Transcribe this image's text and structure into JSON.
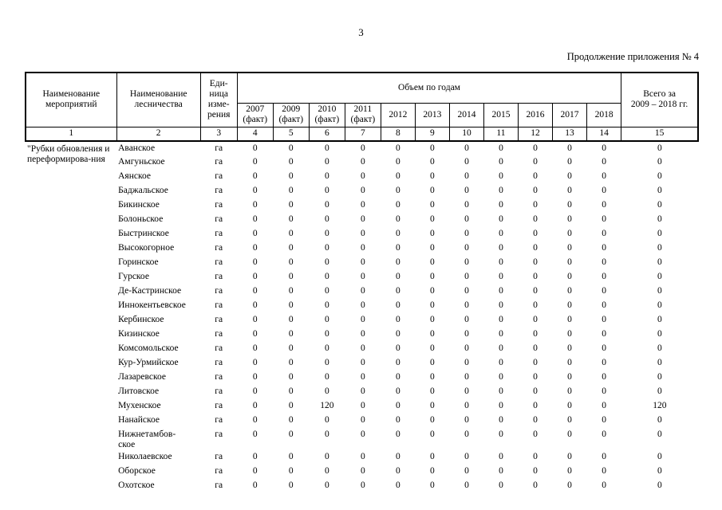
{
  "page": {
    "page_number": "3",
    "continuation_note": "Продолжение приложения № 4"
  },
  "table": {
    "header": {
      "activity_col": "Наименование мероприятий",
      "forestry_col": "Наименование лесничества",
      "unit_col": "Еди-ница изме-рения",
      "volume_group": "Объем по годам",
      "total_col_line1": "Всего за",
      "total_col_line2": "2009 – 2018 гг.",
      "year_cols": [
        {
          "year": "2007",
          "note": "(факт)"
        },
        {
          "year": "2009",
          "note": "(факт)"
        },
        {
          "year": "2010",
          "note": "(факт)"
        },
        {
          "year": "2011",
          "note": "(факт)"
        },
        {
          "year": "2012",
          "note": ""
        },
        {
          "year": "2013",
          "note": ""
        },
        {
          "year": "2014",
          "note": ""
        },
        {
          "year": "2015",
          "note": ""
        },
        {
          "year": "2016",
          "note": ""
        },
        {
          "year": "2017",
          "note": ""
        },
        {
          "year": "2018",
          "note": ""
        }
      ],
      "column_numbers": [
        "1",
        "2",
        "3",
        "4",
        "5",
        "6",
        "7",
        "8",
        "9",
        "10",
        "11",
        "12",
        "13",
        "14",
        "15"
      ]
    },
    "activity_label": "\"Рубки обновления и переформирова-ния",
    "rows": [
      {
        "forestry": "Аванское",
        "unit": "га",
        "values": [
          "0",
          "0",
          "0",
          "0",
          "0",
          "0",
          "0",
          "0",
          "0",
          "0",
          "0"
        ],
        "total": "0"
      },
      {
        "forestry": "Амгуньское",
        "unit": "га",
        "values": [
          "0",
          "0",
          "0",
          "0",
          "0",
          "0",
          "0",
          "0",
          "0",
          "0",
          "0"
        ],
        "total": "0"
      },
      {
        "forestry": "Аянское",
        "unit": "га",
        "values": [
          "0",
          "0",
          "0",
          "0",
          "0",
          "0",
          "0",
          "0",
          "0",
          "0",
          "0"
        ],
        "total": "0"
      },
      {
        "forestry": "Баджальское",
        "unit": "га",
        "values": [
          "0",
          "0",
          "0",
          "0",
          "0",
          "0",
          "0",
          "0",
          "0",
          "0",
          "0"
        ],
        "total": "0"
      },
      {
        "forestry": "Бикинское",
        "unit": "га",
        "values": [
          "0",
          "0",
          "0",
          "0",
          "0",
          "0",
          "0",
          "0",
          "0",
          "0",
          "0"
        ],
        "total": "0"
      },
      {
        "forestry": "Болоньское",
        "unit": "га",
        "values": [
          "0",
          "0",
          "0",
          "0",
          "0",
          "0",
          "0",
          "0",
          "0",
          "0",
          "0"
        ],
        "total": "0"
      },
      {
        "forestry": "Быстринское",
        "unit": "га",
        "values": [
          "0",
          "0",
          "0",
          "0",
          "0",
          "0",
          "0",
          "0",
          "0",
          "0",
          "0"
        ],
        "total": "0"
      },
      {
        "forestry": "Высокогорное",
        "unit": "га",
        "values": [
          "0",
          "0",
          "0",
          "0",
          "0",
          "0",
          "0",
          "0",
          "0",
          "0",
          "0"
        ],
        "total": "0"
      },
      {
        "forestry": "Горинское",
        "unit": "га",
        "values": [
          "0",
          "0",
          "0",
          "0",
          "0",
          "0",
          "0",
          "0",
          "0",
          "0",
          "0"
        ],
        "total": "0"
      },
      {
        "forestry": "Гурское",
        "unit": "га",
        "values": [
          "0",
          "0",
          "0",
          "0",
          "0",
          "0",
          "0",
          "0",
          "0",
          "0",
          "0"
        ],
        "total": "0"
      },
      {
        "forestry": "Де-Кастринское",
        "unit": "га",
        "values": [
          "0",
          "0",
          "0",
          "0",
          "0",
          "0",
          "0",
          "0",
          "0",
          "0",
          "0"
        ],
        "total": "0"
      },
      {
        "forestry": "Иннокентьевское",
        "unit": "га",
        "values": [
          "0",
          "0",
          "0",
          "0",
          "0",
          "0",
          "0",
          "0",
          "0",
          "0",
          "0"
        ],
        "total": "0"
      },
      {
        "forestry": "Кербинское",
        "unit": "га",
        "values": [
          "0",
          "0",
          "0",
          "0",
          "0",
          "0",
          "0",
          "0",
          "0",
          "0",
          "0"
        ],
        "total": "0"
      },
      {
        "forestry": "Кизинское",
        "unit": "га",
        "values": [
          "0",
          "0",
          "0",
          "0",
          "0",
          "0",
          "0",
          "0",
          "0",
          "0",
          "0"
        ],
        "total": "0"
      },
      {
        "forestry": "Комсомольское",
        "unit": "га",
        "values": [
          "0",
          "0",
          "0",
          "0",
          "0",
          "0",
          "0",
          "0",
          "0",
          "0",
          "0"
        ],
        "total": "0"
      },
      {
        "forestry": "Кур-Урмийское",
        "unit": "га",
        "values": [
          "0",
          "0",
          "0",
          "0",
          "0",
          "0",
          "0",
          "0",
          "0",
          "0",
          "0"
        ],
        "total": "0"
      },
      {
        "forestry": "Лазаревское",
        "unit": "га",
        "values": [
          "0",
          "0",
          "0",
          "0",
          "0",
          "0",
          "0",
          "0",
          "0",
          "0",
          "0"
        ],
        "total": "0"
      },
      {
        "forestry": "Литовское",
        "unit": "га",
        "values": [
          "0",
          "0",
          "0",
          "0",
          "0",
          "0",
          "0",
          "0",
          "0",
          "0",
          "0"
        ],
        "total": "0"
      },
      {
        "forestry": "Мухенское",
        "unit": "га",
        "values": [
          "0",
          "0",
          "120",
          "0",
          "0",
          "0",
          "0",
          "0",
          "0",
          "0",
          "0"
        ],
        "total": "120"
      },
      {
        "forestry": "Нанайское",
        "unit": "га",
        "values": [
          "0",
          "0",
          "0",
          "0",
          "0",
          "0",
          "0",
          "0",
          "0",
          "0",
          "0"
        ],
        "total": "0"
      },
      {
        "forestry": "Нижнетамбов-ское",
        "unit": "га",
        "values": [
          "0",
          "0",
          "0",
          "0",
          "0",
          "0",
          "0",
          "0",
          "0",
          "0",
          "0"
        ],
        "total": "0"
      },
      {
        "forestry": "Николаевское",
        "unit": "га",
        "values": [
          "0",
          "0",
          "0",
          "0",
          "0",
          "0",
          "0",
          "0",
          "0",
          "0",
          "0"
        ],
        "total": "0"
      },
      {
        "forestry": "Оборское",
        "unit": "га",
        "values": [
          "0",
          "0",
          "0",
          "0",
          "0",
          "0",
          "0",
          "0",
          "0",
          "0",
          "0"
        ],
        "total": "0"
      },
      {
        "forestry": "Охотское",
        "unit": "га",
        "values": [
          "0",
          "0",
          "0",
          "0",
          "0",
          "0",
          "0",
          "0",
          "0",
          "0",
          "0"
        ],
        "total": "0"
      }
    ]
  }
}
